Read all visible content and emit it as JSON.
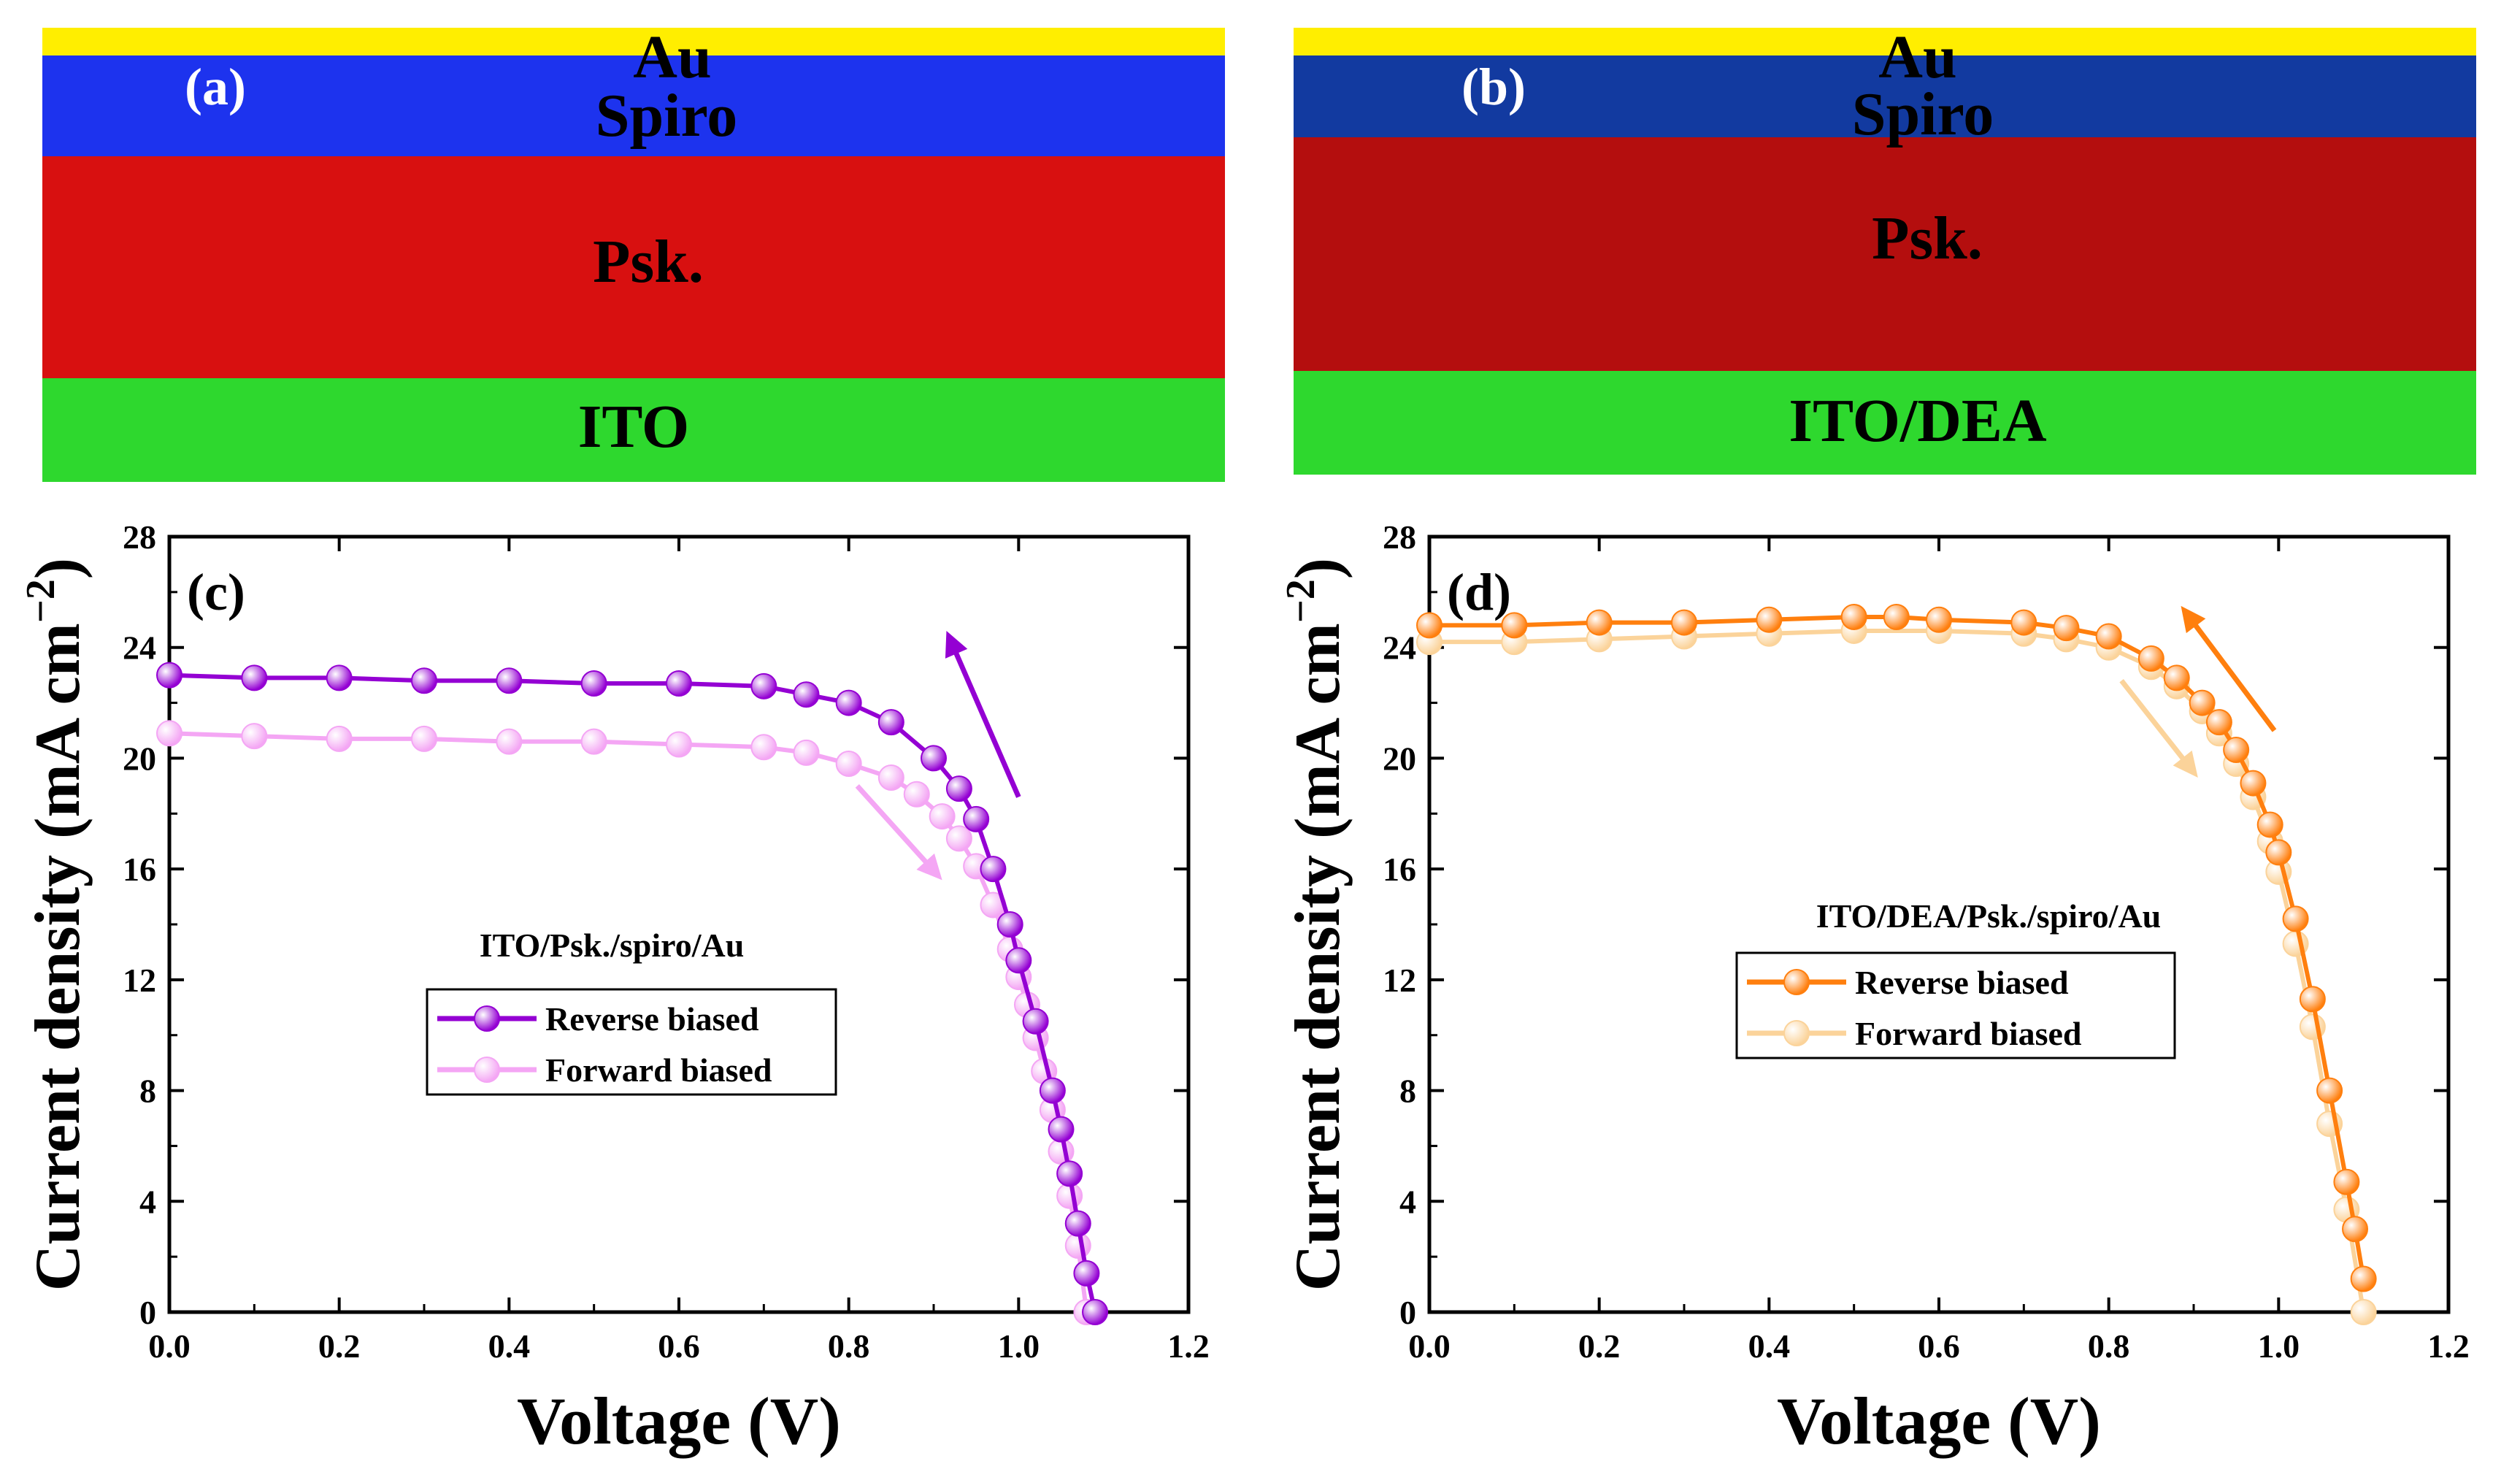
{
  "cross_sections": [
    {
      "panel_label": "(a)",
      "layers": {
        "top": "Au",
        "htl": "Spiro",
        "absorber": "Psk.",
        "bottom": "ITO"
      },
      "colors": {
        "gold": "#ffee00",
        "htl": "#1d33ee",
        "absorber": "#d81010",
        "bottom": "#2ed82e"
      }
    },
    {
      "panel_label": "(b)",
      "layers": {
        "top": "Au",
        "htl": "Spiro",
        "absorber": "Psk.",
        "bottom": "ITO/DEA"
      },
      "colors": {
        "gold": "#ffee00",
        "htl": "#123aa0",
        "absorber": "#b40e0e",
        "bottom": "#2ed82e"
      }
    }
  ],
  "chart_data": [
    {
      "type": "line",
      "panel_label": "(c)",
      "annotation": "ITO/Psk./spiro/Au",
      "xlabel": "Voltage (V)",
      "ylabel": "Current density (mA cm",
      "ylabel_sup": "−2",
      "ylabel_close": ")",
      "xlim": [
        0.0,
        1.2
      ],
      "ylim": [
        0,
        28
      ],
      "xticks": [
        "0.0",
        "0.2",
        "0.4",
        "0.6",
        "0.8",
        "1.0",
        "1.2"
      ],
      "yticks": [
        "0",
        "4",
        "8",
        "12",
        "16",
        "20",
        "24",
        "28"
      ],
      "legend_position": "center-right",
      "series": [
        {
          "name": "Reverse biased",
          "color": "#9400d3",
          "x": [
            0.0,
            0.1,
            0.2,
            0.3,
            0.4,
            0.5,
            0.6,
            0.7,
            0.75,
            0.8,
            0.85,
            0.9,
            0.93,
            0.95,
            0.97,
            0.99,
            1.0,
            1.02,
            1.04,
            1.05,
            1.06,
            1.07,
            1.08,
            1.09
          ],
          "y": [
            23.0,
            22.9,
            22.9,
            22.8,
            22.8,
            22.7,
            22.7,
            22.6,
            22.3,
            22.0,
            21.3,
            20.0,
            18.9,
            17.8,
            16.0,
            14.0,
            12.7,
            10.5,
            8.0,
            6.6,
            5.0,
            3.2,
            1.4,
            0.0
          ]
        },
        {
          "name": "Forward biased",
          "color": "#f4a6f4",
          "x": [
            0.0,
            0.1,
            0.2,
            0.3,
            0.4,
            0.5,
            0.6,
            0.7,
            0.75,
            0.8,
            0.85,
            0.88,
            0.91,
            0.93,
            0.95,
            0.97,
            0.99,
            1.0,
            1.01,
            1.02,
            1.03,
            1.04,
            1.05,
            1.06,
            1.07,
            1.08
          ],
          "y": [
            20.9,
            20.8,
            20.7,
            20.7,
            20.6,
            20.6,
            20.5,
            20.4,
            20.2,
            19.8,
            19.3,
            18.7,
            17.9,
            17.1,
            16.1,
            14.7,
            13.1,
            12.1,
            11.1,
            9.9,
            8.7,
            7.3,
            5.8,
            4.2,
            2.4,
            0.0
          ]
        }
      ]
    },
    {
      "type": "line",
      "panel_label": "(d)",
      "annotation": "ITO/DEA/Psk./spiro/Au",
      "xlabel": "Voltage (V)",
      "ylabel": "Current density (mA cm",
      "ylabel_sup": "−2",
      "ylabel_close": ")",
      "xlim": [
        0.0,
        1.2
      ],
      "ylim": [
        0,
        28
      ],
      "xticks": [
        "0.0",
        "0.2",
        "0.4",
        "0.6",
        "0.8",
        "1.0",
        "1.2"
      ],
      "yticks": [
        "0",
        "4",
        "8",
        "12",
        "16",
        "20",
        "24",
        "28"
      ],
      "legend_position": "center-right",
      "series": [
        {
          "name": "Reverse biased",
          "color": "#ff7f0e",
          "x": [
            0.0,
            0.1,
            0.2,
            0.3,
            0.4,
            0.5,
            0.55,
            0.6,
            0.7,
            0.75,
            0.8,
            0.85,
            0.88,
            0.91,
            0.93,
            0.95,
            0.97,
            0.99,
            1.0,
            1.02,
            1.04,
            1.06,
            1.08,
            1.09,
            1.1
          ],
          "y": [
            24.8,
            24.8,
            24.9,
            24.9,
            25.0,
            25.1,
            25.1,
            25.0,
            24.9,
            24.7,
            24.4,
            23.6,
            22.9,
            22.0,
            21.3,
            20.3,
            19.1,
            17.6,
            16.6,
            14.2,
            11.3,
            8.0,
            4.7,
            3.0,
            1.2
          ]
        },
        {
          "name": "Forward biased",
          "color": "#fbd39a",
          "x": [
            0.0,
            0.1,
            0.2,
            0.3,
            0.4,
            0.5,
            0.6,
            0.7,
            0.75,
            0.8,
            0.85,
            0.88,
            0.91,
            0.93,
            0.95,
            0.97,
            0.99,
            1.0,
            1.02,
            1.04,
            1.06,
            1.08,
            1.1
          ],
          "y": [
            24.2,
            24.2,
            24.3,
            24.4,
            24.5,
            24.6,
            24.6,
            24.5,
            24.3,
            24.0,
            23.3,
            22.6,
            21.7,
            20.9,
            19.8,
            18.6,
            17.0,
            15.9,
            13.3,
            10.3,
            6.8,
            3.7,
            0.0
          ]
        }
      ]
    }
  ]
}
